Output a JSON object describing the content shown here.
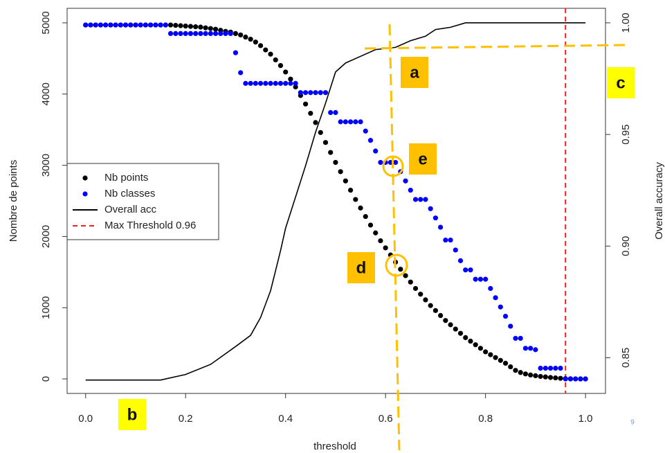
{
  "chart_data": {
    "type": "scatter",
    "x_label": "threshold",
    "y_label": "Nombre de points",
    "y2_label": "Overall accuracy",
    "xlim": [
      -0.037,
      1.04
    ],
    "ylim": [
      -204,
      5204
    ],
    "y2lim": [
      0.834,
      1.0065
    ],
    "xticks": [
      {
        "value": 0,
        "label": "0.0"
      },
      0.2,
      0.4,
      0.6,
      0.8,
      {
        "value": 1,
        "label": "1.0"
      }
    ],
    "yticks": [
      0,
      1000,
      2000,
      3000,
      4000,
      5000
    ],
    "y2ticks": [
      0.85,
      {
        "value": 0.9,
        "label": "0.90"
      },
      0.95,
      {
        "value": 1,
        "label": "1.00"
      }
    ],
    "x": [
      0,
      0.01,
      0.02,
      0.03,
      0.04,
      0.05,
      0.06,
      0.07,
      0.08,
      0.09,
      0.1,
      0.11,
      0.12,
      0.13,
      0.14,
      0.15,
      0.16,
      0.17,
      0.18,
      0.19,
      0.2,
      0.21,
      0.22,
      0.23,
      0.24,
      0.25,
      0.26,
      0.27,
      0.28,
      0.29,
      0.3,
      0.31,
      0.32,
      0.33,
      0.34,
      0.35,
      0.36,
      0.37,
      0.38,
      0.39,
      0.4,
      0.41,
      0.42,
      0.43,
      0.44,
      0.45,
      0.46,
      0.47,
      0.48,
      0.49,
      0.5,
      0.51,
      0.52,
      0.53,
      0.54,
      0.55,
      0.56,
      0.57,
      0.58,
      0.59,
      0.6,
      0.61,
      0.62,
      0.63,
      0.64,
      0.65,
      0.66,
      0.67,
      0.68,
      0.69,
      0.7,
      0.71,
      0.72,
      0.73,
      0.74,
      0.75,
      0.76,
      0.77,
      0.78,
      0.79,
      0.8,
      0.81,
      0.82,
      0.83,
      0.84,
      0.85,
      0.86,
      0.87,
      0.88,
      0.89,
      0.9,
      0.91,
      0.92,
      0.93,
      0.94,
      0.95,
      0.96,
      0.97,
      0.98,
      0.99,
      1
    ],
    "series": [
      {
        "name": "Nb points",
        "type": "scatter",
        "color": "#000000",
        "values": [
          4970,
          4970,
          4970,
          4970,
          4970,
          4970,
          4970,
          4970,
          4970,
          4970,
          4970,
          4970,
          4970,
          4970,
          4970,
          4970,
          4970,
          4970,
          4965,
          4960,
          4955,
          4950,
          4945,
          4940,
          4930,
          4920,
          4910,
          4895,
          4880,
          4870,
          4850,
          4830,
          4800,
          4770,
          4730,
          4680,
          4620,
          4560,
          4480,
          4400,
          4310,
          4210,
          4100,
          3980,
          3860,
          3730,
          3600,
          3460,
          3320,
          3180,
          3040,
          2910,
          2780,
          2650,
          2520,
          2400,
          2280,
          2160,
          2050,
          1940,
          1840,
          1740,
          1640,
          1540,
          1450,
          1360,
          1270,
          1190,
          1110,
          1030,
          960,
          890,
          820,
          760,
          700,
          640,
          580,
          530,
          480,
          430,
          380,
          340,
          300,
          260,
          220,
          170,
          120,
          90,
          70,
          55,
          45,
          35,
          28,
          20,
          14,
          8,
          4,
          2,
          1,
          0,
          0
        ]
      },
      {
        "name": "Nb classes",
        "type": "scatter",
        "color": "#0000ff",
        "values": [
          4970,
          4970,
          4970,
          4970,
          4970,
          4970,
          4970,
          4970,
          4970,
          4970,
          4970,
          4970,
          4970,
          4970,
          4970,
          4970,
          4970,
          4850,
          4850,
          4850,
          4850,
          4850,
          4850,
          4850,
          4850,
          4850,
          4850,
          4850,
          4850,
          4850,
          4580,
          4300,
          4150,
          4150,
          4150,
          4150,
          4150,
          4150,
          4150,
          4150,
          4150,
          4150,
          4150,
          4020,
          4020,
          4020,
          4020,
          4020,
          4020,
          3740,
          3740,
          3610,
          3610,
          3610,
          3610,
          3610,
          3480,
          3350,
          3200,
          3040,
          3040,
          3040,
          3040,
          2910,
          2780,
          2650,
          2520,
          2520,
          2520,
          2390,
          2260,
          2130,
          1950,
          1950,
          1810,
          1660,
          1530,
          1530,
          1400,
          1400,
          1400,
          1270,
          1140,
          1010,
          880,
          740,
          570,
          570,
          430,
          430,
          410,
          150,
          150,
          150,
          150,
          150,
          0,
          0,
          0,
          0,
          0
        ]
      },
      {
        "name": "Overall acc",
        "type": "line",
        "color": "#000000",
        "axis": "y2",
        "x": [
          0,
          0.15,
          0.2,
          0.25,
          0.3,
          0.33,
          0.35,
          0.37,
          0.39,
          0.4,
          0.42,
          0.44,
          0.46,
          0.48,
          0.5,
          0.52,
          0.55,
          0.58,
          0.62,
          0.65,
          0.68,
          0.7,
          0.73,
          0.76,
          1
        ],
        "values": [
          0.84,
          0.84,
          0.8425,
          0.847,
          0.855,
          0.86,
          0.868,
          0.88,
          0.898,
          0.908,
          0.922,
          0.936,
          0.951,
          0.964,
          0.978,
          0.982,
          0.985,
          0.988,
          0.989,
          0.992,
          0.994,
          0.997,
          0.998,
          1,
          1
        ]
      }
    ],
    "vlines": [
      {
        "name": "Max Threshold 0.96",
        "x": 0.96,
        "color": "#ff1a1a"
      }
    ],
    "legend": "left",
    "annotations": [
      {
        "text": "a",
        "color": "#ffc000"
      },
      {
        "text": "b",
        "color": "#ffff00"
      },
      {
        "text": "c",
        "color": "#ffff00"
      },
      {
        "text": "d",
        "color": "#ffc000"
      },
      {
        "text": "e",
        "color": "#ffc000"
      }
    ],
    "footnote": "9"
  }
}
